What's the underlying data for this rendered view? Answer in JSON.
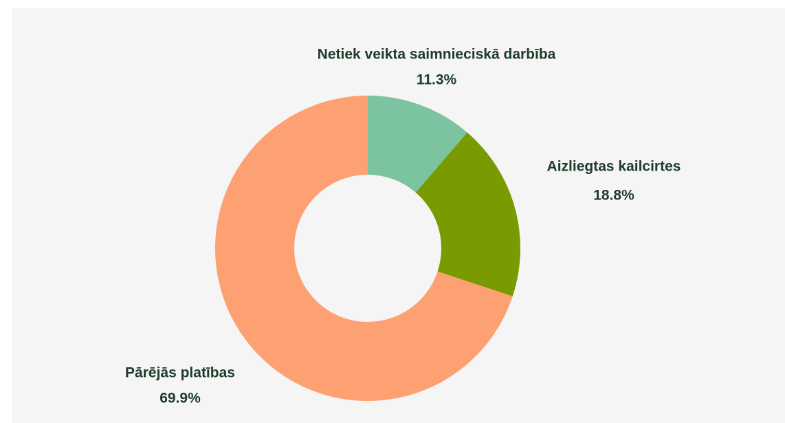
{
  "chart_data": {
    "type": "donut",
    "categories": [
      "Netiek veikta saimnieciskā darbība",
      "Aizliegtas kailcirtes",
      "Pārējās platības"
    ],
    "values": [
      11.3,
      18.8,
      69.9
    ],
    "value_labels": [
      "11.3%",
      "18.8%",
      "69.9%"
    ],
    "colors": [
      "#7cc39f",
      "#7a9a01",
      "#fda072"
    ]
  }
}
